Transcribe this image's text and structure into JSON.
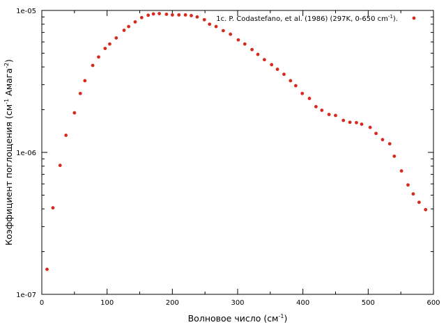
{
  "chart_data": {
    "type": "scatter",
    "x_unit_label": "Волновое число (см",
    "x_unit_sup": "-1",
    "x_unit_close": ")",
    "y_label_main": "Коэффициент поглощения (см",
    "y_label_sup1": "-1",
    "y_label_mid": " Амага",
    "y_label_sup2": "-2",
    "y_label_close": ")",
    "xlim": [
      0,
      600
    ],
    "ylim": [
      1e-07,
      1e-05
    ],
    "yscale": "log",
    "x_ticks": [
      0,
      100,
      200,
      300,
      400,
      500,
      600
    ],
    "y_ticks": [
      {
        "value": 1e-07,
        "label": "1e-07"
      },
      {
        "value": 1e-06,
        "label": "1e-06"
      },
      {
        "value": 1e-05,
        "label": "1e-05"
      }
    ],
    "grid": false,
    "legend_position": "top-right",
    "marker_color": "#d62a1e",
    "series": [
      {
        "name_main": "1c. P. Codastefano, et al. (1986) (297K, 0-650 cm",
        "name_sup": "-1",
        "name_close": ").",
        "x": [
          8,
          17,
          28,
          37,
          50,
          59,
          66,
          78,
          87,
          97,
          104,
          114,
          126,
          133,
          143,
          153,
          163,
          171,
          180,
          191,
          200,
          210,
          220,
          229,
          238,
          249,
          257,
          267,
          278,
          289,
          301,
          311,
          322,
          331,
          341,
          352,
          361,
          371,
          381,
          389,
          399,
          410,
          420,
          429,
          440,
          450,
          462,
          472,
          482,
          490,
          503,
          512,
          522,
          533,
          540,
          551,
          561,
          569,
          578,
          588
        ],
        "y": [
          1.5e-07,
          4.07e-07,
          8.1e-07,
          1.32e-06,
          1.9e-06,
          2.6e-06,
          3.2e-06,
          4.1e-06,
          4.7e-06,
          5.4e-06,
          5.8e-06,
          6.4e-06,
          7.25e-06,
          7.7e-06,
          8.3e-06,
          8.9e-06,
          9.25e-06,
          9.45e-06,
          9.5e-06,
          9.4e-06,
          9.3e-06,
          9.3e-06,
          9.3e-06,
          9.2e-06,
          9e-06,
          8.6e-06,
          8e-06,
          7.7e-06,
          7.2e-06,
          6.8e-06,
          6.2e-06,
          5.8e-06,
          5.3e-06,
          4.9e-06,
          4.5e-06,
          4.15e-06,
          3.85e-06,
          3.55e-06,
          3.2e-06,
          2.95e-06,
          2.6e-06,
          2.4e-06,
          2.1e-06,
          1.98e-06,
          1.85e-06,
          1.82e-06,
          1.68e-06,
          1.63e-06,
          1.62e-06,
          1.58e-06,
          1.5e-06,
          1.36e-06,
          1.23e-06,
          1.15e-06,
          9.4e-07,
          7.4e-07,
          5.9e-07,
          5.1e-07,
          4.45e-07,
          3.95e-07
        ]
      }
    ]
  }
}
